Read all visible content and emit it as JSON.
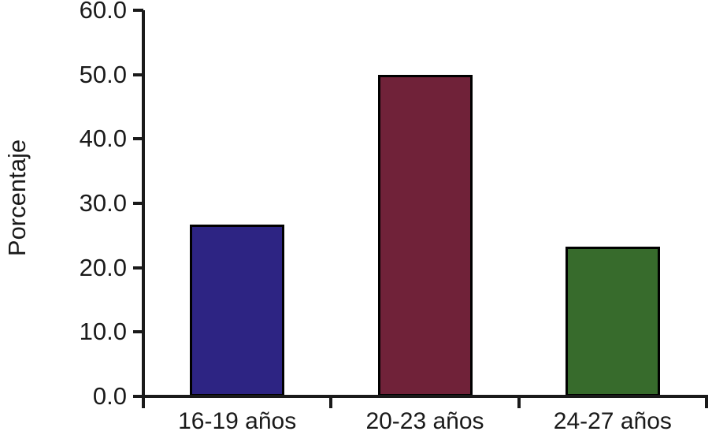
{
  "chart_data": {
    "type": "bar",
    "title": "",
    "xlabel": "",
    "ylabel": "Porcentaje",
    "categories": [
      "16-19 años",
      "20-23 años",
      "24-27 años"
    ],
    "values": [
      26.7,
      50.0,
      23.3
    ],
    "bar_colors": [
      "#2d2483",
      "#702239",
      "#376b2c"
    ],
    "bar_edge_color": "#000000",
    "ylim": [
      0,
      60
    ],
    "ytick_labels": [
      "0.0",
      "10.0",
      "20.0",
      "30.0",
      "40.0",
      "50.0",
      "60.0"
    ],
    "ytick_values": [
      0,
      10,
      20,
      30,
      40,
      50,
      60
    ],
    "grid": false,
    "legend": "none",
    "background": "#ffffff",
    "axis_color": "#1a1a1a"
  }
}
